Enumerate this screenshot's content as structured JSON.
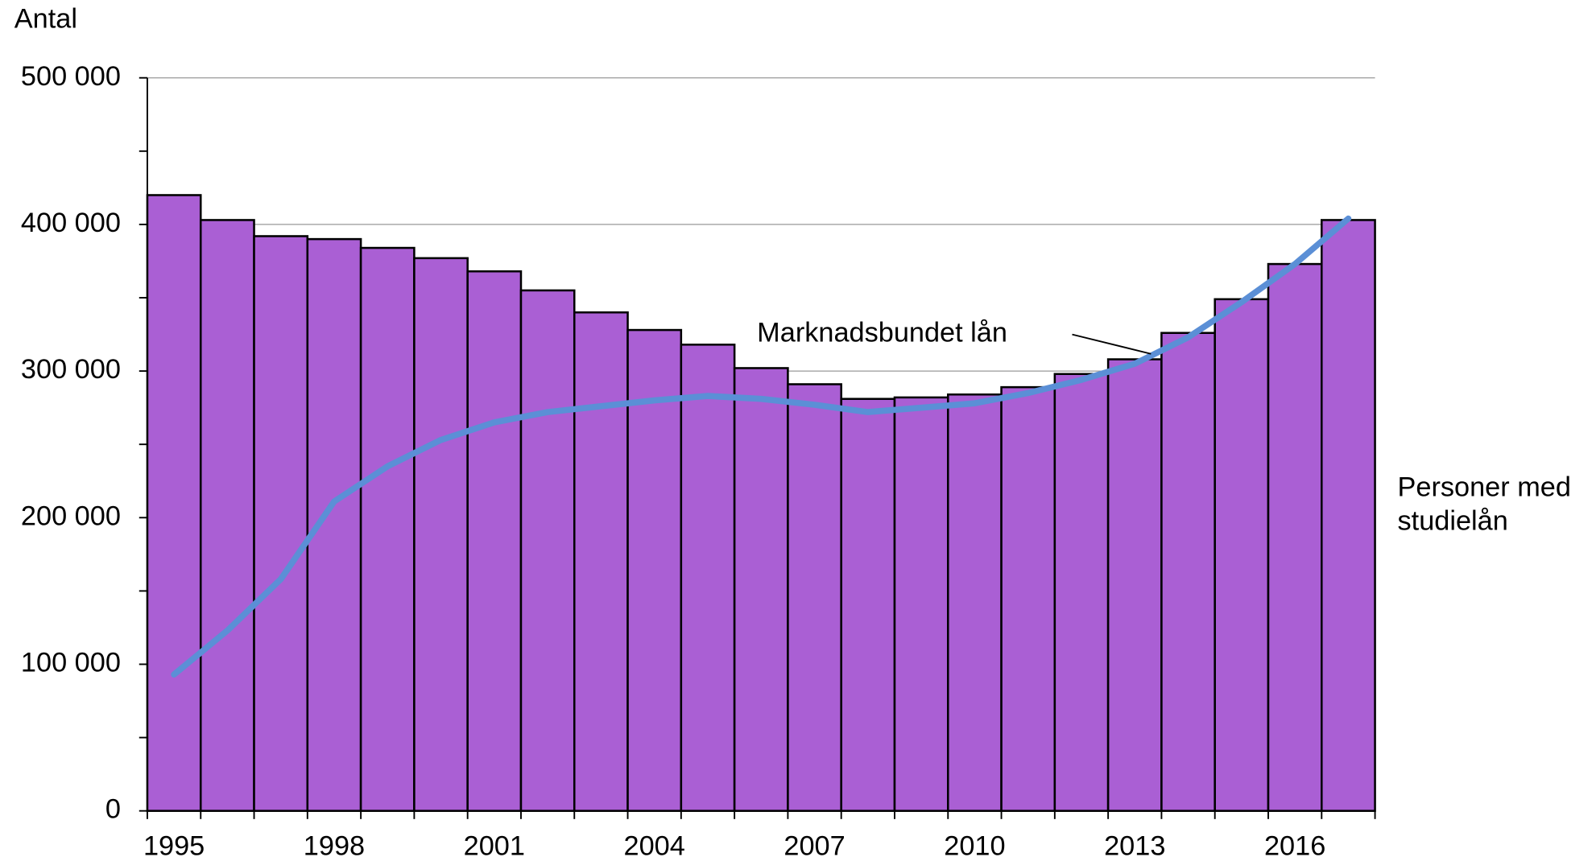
{
  "chart_data": {
    "type": "bar",
    "y_label": "Antal",
    "categories": [
      "1995",
      null,
      null,
      "1998",
      null,
      null,
      "2001",
      null,
      null,
      "2004",
      null,
      null,
      "2007",
      null,
      null,
      "2010",
      null,
      null,
      "2013",
      null,
      null,
      "2016",
      null
    ],
    "series": [
      {
        "name": "Personer med studielån",
        "type": "bar",
        "color": "#aa5fd4",
        "values": [
          420000,
          403000,
          392000,
          390000,
          384000,
          377000,
          368000,
          355000,
          340000,
          328000,
          318000,
          302000,
          291000,
          281000,
          282000,
          284000,
          289000,
          298000,
          308000,
          326000,
          349000,
          373000,
          403000
        ]
      },
      {
        "name": "Marknadsbundet lån",
        "type": "line",
        "color": "#5b8fd6",
        "values": [
          93000,
          123000,
          158000,
          211000,
          235000,
          253000,
          265000,
          272000,
          276000,
          280000,
          283000,
          281000,
          277000,
          272000,
          275000,
          278000,
          285000,
          294000,
          305000,
          323000,
          347000,
          373000,
          404000
        ]
      }
    ],
    "ylim": [
      0,
      500000
    ],
    "yticks": [
      0,
      {
        "value": 100000,
        "label": "100 000"
      },
      {
        "value": 200000,
        "label": "200 000"
      },
      {
        "value": 300000,
        "label": "300 000"
      },
      {
        "value": 400000,
        "label": "400 000"
      },
      {
        "value": 500000,
        "label": "500 000"
      }
    ],
    "yticks_minor": [
      50000,
      150000,
      250000,
      350000,
      450000
    ],
    "grid": true
  }
}
